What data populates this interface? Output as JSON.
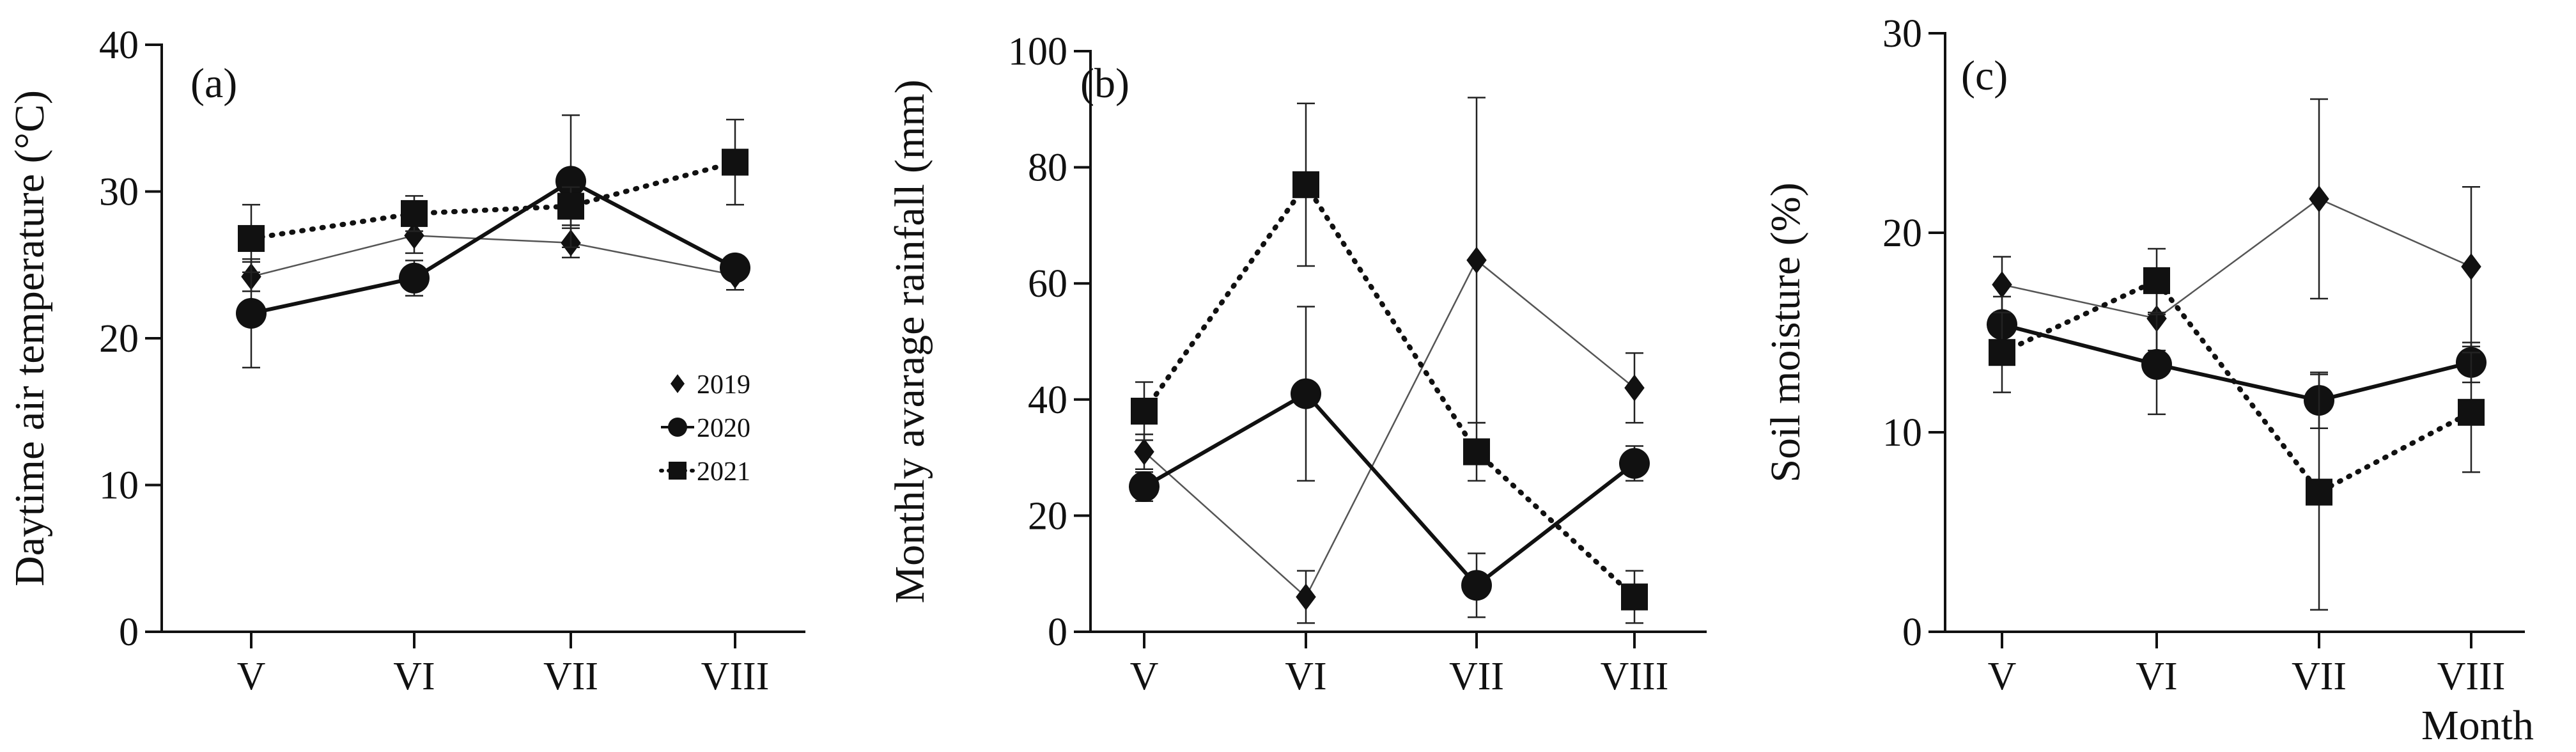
{
  "chart_data": [
    {
      "type": "line",
      "panel_label": "(a)",
      "ylabel": "Daytime  air temperature (°C)",
      "xlabel": "",
      "categories": [
        "V",
        "VI",
        "VII",
        "VIII"
      ],
      "ylim": [
        0,
        40
      ],
      "yticks": [
        0,
        10,
        20,
        30,
        40
      ],
      "grid": false,
      "legend": {
        "position": "center-right",
        "entries": [
          {
            "label": "2019",
            "marker": "diamond",
            "line": "thin"
          },
          {
            "label": "2020",
            "marker": "circle",
            "line": "thick"
          },
          {
            "label": "2021",
            "marker": "square",
            "line": "dotted"
          }
        ]
      },
      "series": [
        {
          "name": "2019",
          "marker": "diamond",
          "line": "thin",
          "values": [
            24.2,
            27.0,
            26.5,
            24.3
          ],
          "errors": [
            1.0,
            1.2,
            1.0,
            1.0
          ]
        },
        {
          "name": "2020",
          "marker": "circle",
          "line": "thick",
          "values": [
            21.7,
            24.1,
            30.7,
            24.8
          ],
          "errors": [
            3.7,
            1.2,
            4.5,
            0.6
          ]
        },
        {
          "name": "2021",
          "marker": "square",
          "line": "dotted",
          "values": [
            26.8,
            28.5,
            29.0,
            32.0
          ],
          "errors": [
            2.3,
            1.2,
            1.3,
            2.9
          ]
        }
      ]
    },
    {
      "type": "line",
      "panel_label": "(b)",
      "ylabel": "Monthly avarage rainfall (mm)",
      "xlabel": "",
      "categories": [
        "V",
        "VI",
        "VII",
        "VIII"
      ],
      "ylim": [
        0,
        100
      ],
      "yticks": [
        0,
        20,
        40,
        60,
        80,
        100
      ],
      "grid": false,
      "series": [
        {
          "name": "2019",
          "marker": "diamond",
          "line": "thin",
          "values": [
            31,
            6,
            64,
            42
          ],
          "errors": [
            3,
            4.5,
            28,
            6
          ]
        },
        {
          "name": "2020",
          "marker": "circle",
          "line": "thick",
          "values": [
            25,
            41,
            8,
            29
          ],
          "errors": [
            2.5,
            15,
            5.5,
            3
          ]
        },
        {
          "name": "2021",
          "marker": "square",
          "line": "dotted",
          "values": [
            38,
            77,
            31,
            6
          ],
          "errors": [
            5,
            14,
            5,
            4.5
          ]
        }
      ]
    },
    {
      "type": "line",
      "panel_label": "(c)",
      "ylabel": "Soil moisture (%)",
      "xlabel": "Month",
      "categories": [
        "V",
        "VI",
        "VII",
        "VIII"
      ],
      "ylim": [
        0,
        30
      ],
      "yticks": [
        0,
        10,
        20,
        30
      ],
      "grid": false,
      "series": [
        {
          "name": "2019",
          "marker": "diamond",
          "line": "thin",
          "values": [
            17.4,
            15.7,
            21.7,
            18.3
          ],
          "errors": [
            1.4,
            1.6,
            5.0,
            4.0
          ]
        },
        {
          "name": "2020",
          "marker": "circle",
          "line": "thick",
          "values": [
            15.4,
            13.4,
            11.6,
            13.5
          ],
          "errors": [
            1.4,
            2.5,
            1.4,
            1.0
          ]
        },
        {
          "name": "2021",
          "marker": "square",
          "line": "dotted",
          "values": [
            14.0,
            17.6,
            7.0,
            11.0
          ],
          "errors": [
            2.0,
            1.6,
            5.9,
            3.0
          ]
        }
      ]
    }
  ]
}
